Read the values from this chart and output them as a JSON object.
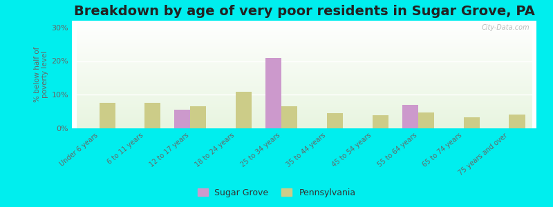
{
  "title": "Breakdown by age of very poor residents in Sugar Grove, PA",
  "ylabel": "% below half of\npoverty level",
  "categories": [
    "Under 6 years",
    "6 to 11 years",
    "12 to 17 years",
    "18 to 24 years",
    "25 to 34 years",
    "35 to 44 years",
    "45 to 54 years",
    "55 to 64 years",
    "65 to 74 years",
    "75 years and over"
  ],
  "sugar_grove": [
    0,
    0,
    5.5,
    0,
    21.0,
    0,
    0,
    7.0,
    0,
    0
  ],
  "pennsylvania": [
    7.5,
    7.5,
    6.5,
    10.8,
    6.5,
    4.5,
    4.0,
    4.8,
    3.2,
    4.2
  ],
  "sugar_grove_color": "#cc99cc",
  "pennsylvania_color": "#cccc88",
  "background_color": "#00eeee",
  "ylim": [
    0,
    32
  ],
  "yticks": [
    0,
    10,
    20,
    30
  ],
  "ytick_labels": [
    "0%",
    "10%",
    "20%",
    "30%"
  ],
  "bar_width": 0.35,
  "title_fontsize": 14,
  "watermark": "City-Data.com"
}
